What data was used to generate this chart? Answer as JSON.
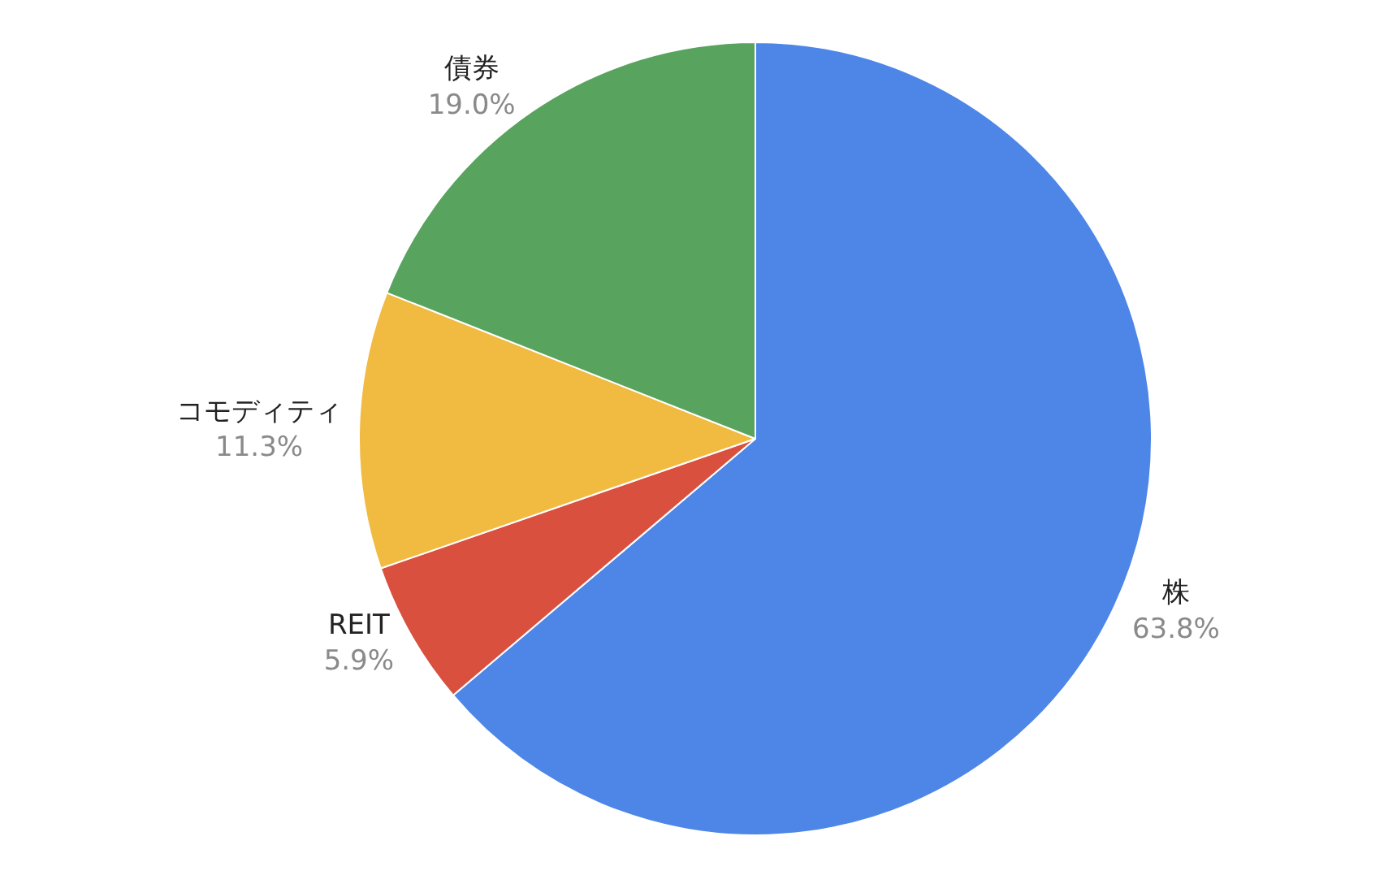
{
  "chart_data": {
    "type": "pie",
    "categories": [
      "株",
      "REIT",
      "コモディティ",
      "債券"
    ],
    "values": [
      63.8,
      5.9,
      11.3,
      19.0
    ],
    "colors": [
      "#4e86e8",
      "#d9503f",
      "#f1bb41",
      "#58a35e"
    ],
    "value_labels": [
      "63.8%",
      "5.9%",
      "11.3%",
      "19.0%"
    ],
    "legend": false
  }
}
